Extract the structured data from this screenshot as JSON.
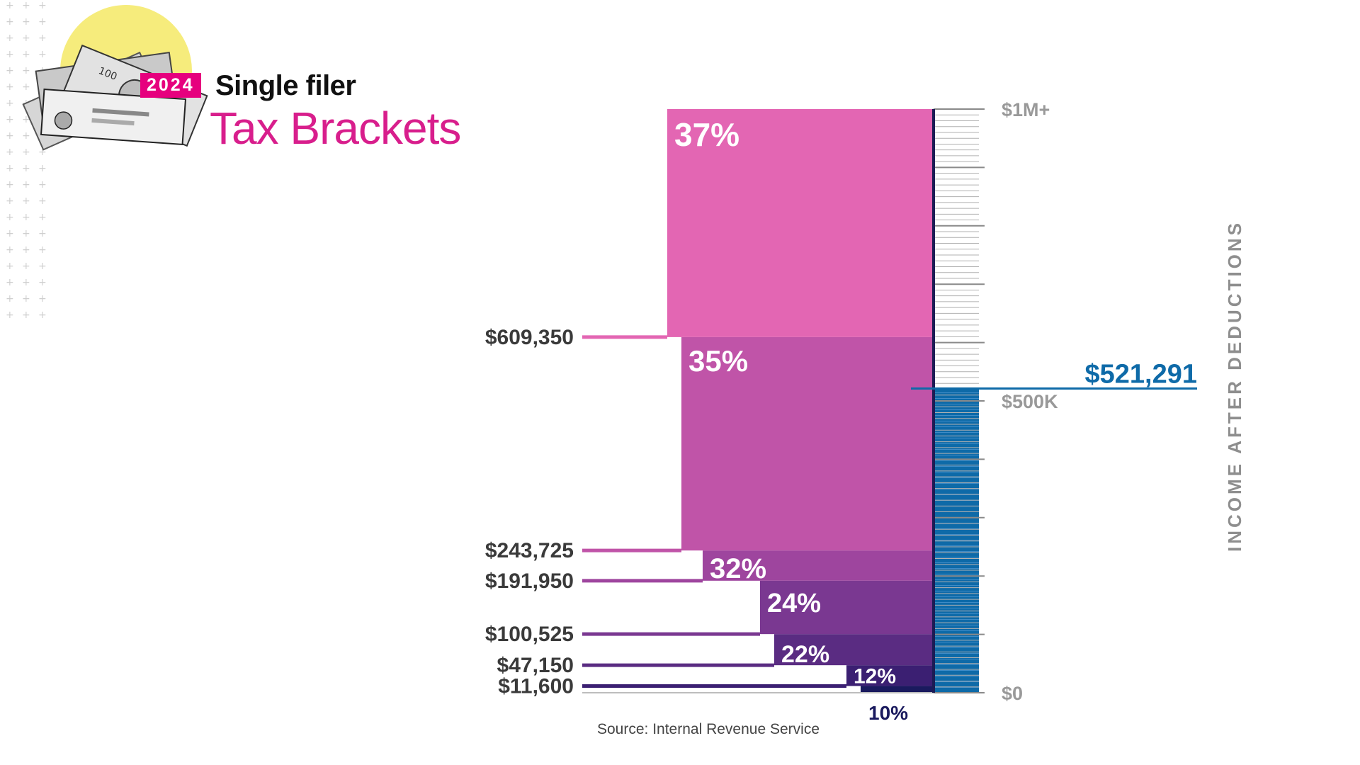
{
  "header": {
    "year_badge": "2024",
    "filer": "Single filer",
    "title": "Tax Brackets"
  },
  "source": "Source: Internal Revenue Service",
  "colors": {
    "accent_pink": "#e6007e",
    "income_blue": "#0e6aa8",
    "tick_gray": "#999999",
    "label_dark": "#3a3a3a"
  },
  "chart_data": {
    "type": "bar",
    "axis_label": "INCOME AFTER DEDUCTIONS",
    "ylim": [
      0,
      1000000
    ],
    "axis_ticks": [
      {
        "value": 1000000,
        "label": "$1M+"
      },
      {
        "value": 500000,
        "label": "$500K"
      },
      {
        "value": 0,
        "label": "$0"
      }
    ],
    "brackets": [
      {
        "rate": "10%",
        "lower": 0,
        "upper": 11600,
        "color": "#1a1a5e"
      },
      {
        "rate": "12%",
        "lower": 11600,
        "upper": 47150,
        "color": "#3b1f72"
      },
      {
        "rate": "22%",
        "lower": 47150,
        "upper": 100525,
        "color": "#5a2c82"
      },
      {
        "rate": "24%",
        "lower": 100525,
        "upper": 191950,
        "color": "#7a3891"
      },
      {
        "rate": "32%",
        "lower": 191950,
        "upper": 243725,
        "color": "#9e459e"
      },
      {
        "rate": "35%",
        "lower": 243725,
        "upper": 609350,
        "color": "#c054a8"
      },
      {
        "rate": "37%",
        "lower": 609350,
        "upper": 1000000,
        "color": "#e366b3"
      }
    ],
    "threshold_labels": [
      "$11,600",
      "$47,150",
      "$100,525",
      "$191,950",
      "$243,725",
      "$609,350"
    ],
    "marker": {
      "value": 521291,
      "label": "$521,291"
    }
  }
}
